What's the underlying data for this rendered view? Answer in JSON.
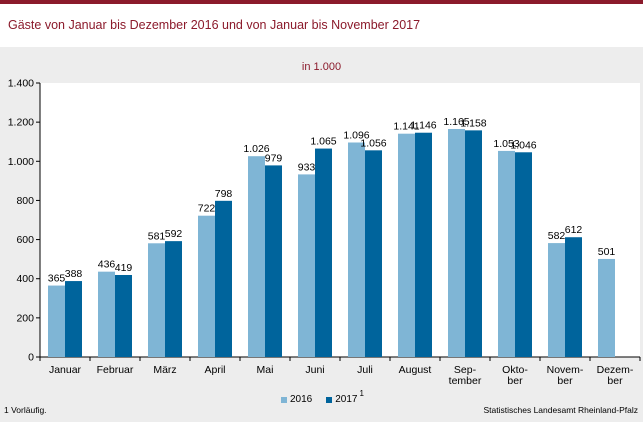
{
  "header": {
    "title": "Gäste von Januar bis Dezember 2016 und von Januar bis November 2017"
  },
  "chart_data": {
    "type": "bar",
    "subtitle": "in 1.000",
    "categories": [
      [
        "Januar"
      ],
      [
        "Februar"
      ],
      [
        "März"
      ],
      [
        "April"
      ],
      [
        "Mai"
      ],
      [
        "Juni"
      ],
      [
        "Juli"
      ],
      [
        "August"
      ],
      [
        "Sep-",
        "tember"
      ],
      [
        "Okto-",
        "ber"
      ],
      [
        "Novem-",
        "ber"
      ],
      [
        "Dezem-",
        "ber"
      ]
    ],
    "series": [
      {
        "name": "2016",
        "color": "#7fb5d5",
        "values": [
          365,
          436,
          581,
          722,
          1026,
          933,
          1096,
          1141,
          1165,
          1053,
          582,
          501
        ],
        "labels": [
          "365",
          "436",
          "581",
          "722",
          "1.026",
          "933",
          "1.096",
          "1.141",
          "1.165",
          "1.053",
          "582",
          "501"
        ]
      },
      {
        "name": "2017",
        "sup": "1",
        "color": "#00649c",
        "values": [
          388,
          419,
          592,
          798,
          979,
          1065,
          1056,
          1146,
          1158,
          1046,
          612,
          null
        ],
        "labels": [
          "388",
          "419",
          "592",
          "798",
          "979",
          "1.065",
          "1.056",
          "1.146",
          "1.158",
          "1.046",
          "612",
          ""
        ]
      }
    ],
    "ylim": [
      0,
      1400
    ],
    "yticks": [
      0,
      200,
      400,
      600,
      800,
      1000,
      1200,
      1400
    ],
    "ytick_labels": [
      "0",
      "200",
      "400",
      "600",
      "800",
      "1.000",
      "1.200",
      "1.400"
    ],
    "grid": false,
    "legend": "bottom-center"
  },
  "footer": {
    "note": "1 Vorläufig.",
    "source": "Statistisches Landesamt Rheinland-Pfalz"
  }
}
